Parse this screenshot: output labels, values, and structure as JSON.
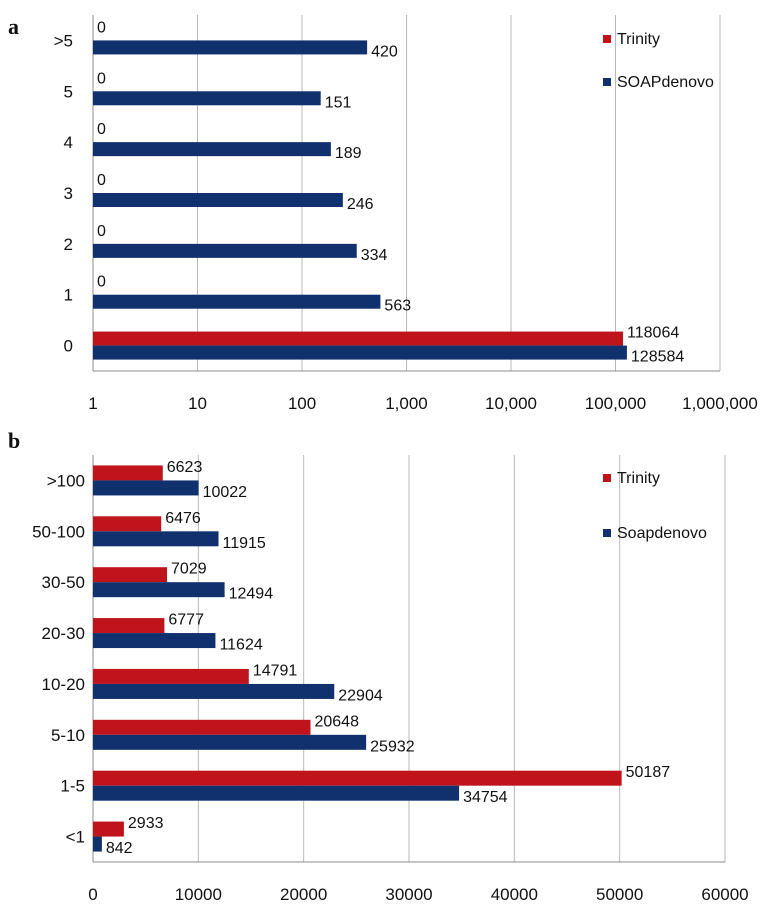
{
  "chart_data": [
    {
      "panel": "a",
      "type": "bar",
      "orientation": "horizontal",
      "xscale": "log",
      "xlim": [
        1,
        1000000
      ],
      "xticks": [
        "1",
        "10",
        "100",
        "1,000",
        "10,000",
        "100,000",
        "1,000,000"
      ],
      "grid": true,
      "legend_position": "top-right",
      "categories": [
        "0",
        "1",
        "2",
        "3",
        "4",
        "5",
        ">5"
      ],
      "series": [
        {
          "name": "Trinity",
          "color": "#c0141c",
          "values": [
            118064,
            0,
            0,
            0,
            0,
            0,
            0
          ],
          "labels": [
            "118064",
            "0",
            "0",
            "0",
            "0",
            "0",
            "0"
          ]
        },
        {
          "name": "SOAPdenovo",
          "color": "#10306e",
          "values": [
            128584,
            563,
            334,
            246,
            189,
            151,
            420
          ],
          "labels": [
            "128584",
            "563",
            "334",
            "246",
            "189",
            "151",
            "420"
          ]
        }
      ]
    },
    {
      "panel": "b",
      "type": "bar",
      "orientation": "horizontal",
      "xscale": "linear",
      "xlim": [
        0,
        60000
      ],
      "xticks": [
        "0",
        "10000",
        "20000",
        "30000",
        "40000",
        "50000",
        "60000"
      ],
      "grid": true,
      "legend_position": "top-right",
      "categories": [
        "<1",
        "1-5",
        "5-10",
        "10-20",
        "20-30",
        "30-50",
        "50-100",
        ">100"
      ],
      "series": [
        {
          "name": "Trinity",
          "color": "#c0141c",
          "values": [
            2933,
            50187,
            20648,
            14791,
            6777,
            7029,
            6476,
            6623
          ],
          "labels": [
            "2933",
            "50187",
            "20648",
            "14791",
            "6777",
            "7029",
            "6476",
            "6623"
          ]
        },
        {
          "name": "Soapdenovo",
          "color": "#10306e",
          "values": [
            842,
            34754,
            25932,
            22904,
            11624,
            12494,
            11915,
            10022
          ],
          "labels": [
            "842",
            "34754",
            "25932",
            "22904",
            "11624",
            "12494",
            "11915",
            "10022"
          ]
        }
      ]
    }
  ]
}
